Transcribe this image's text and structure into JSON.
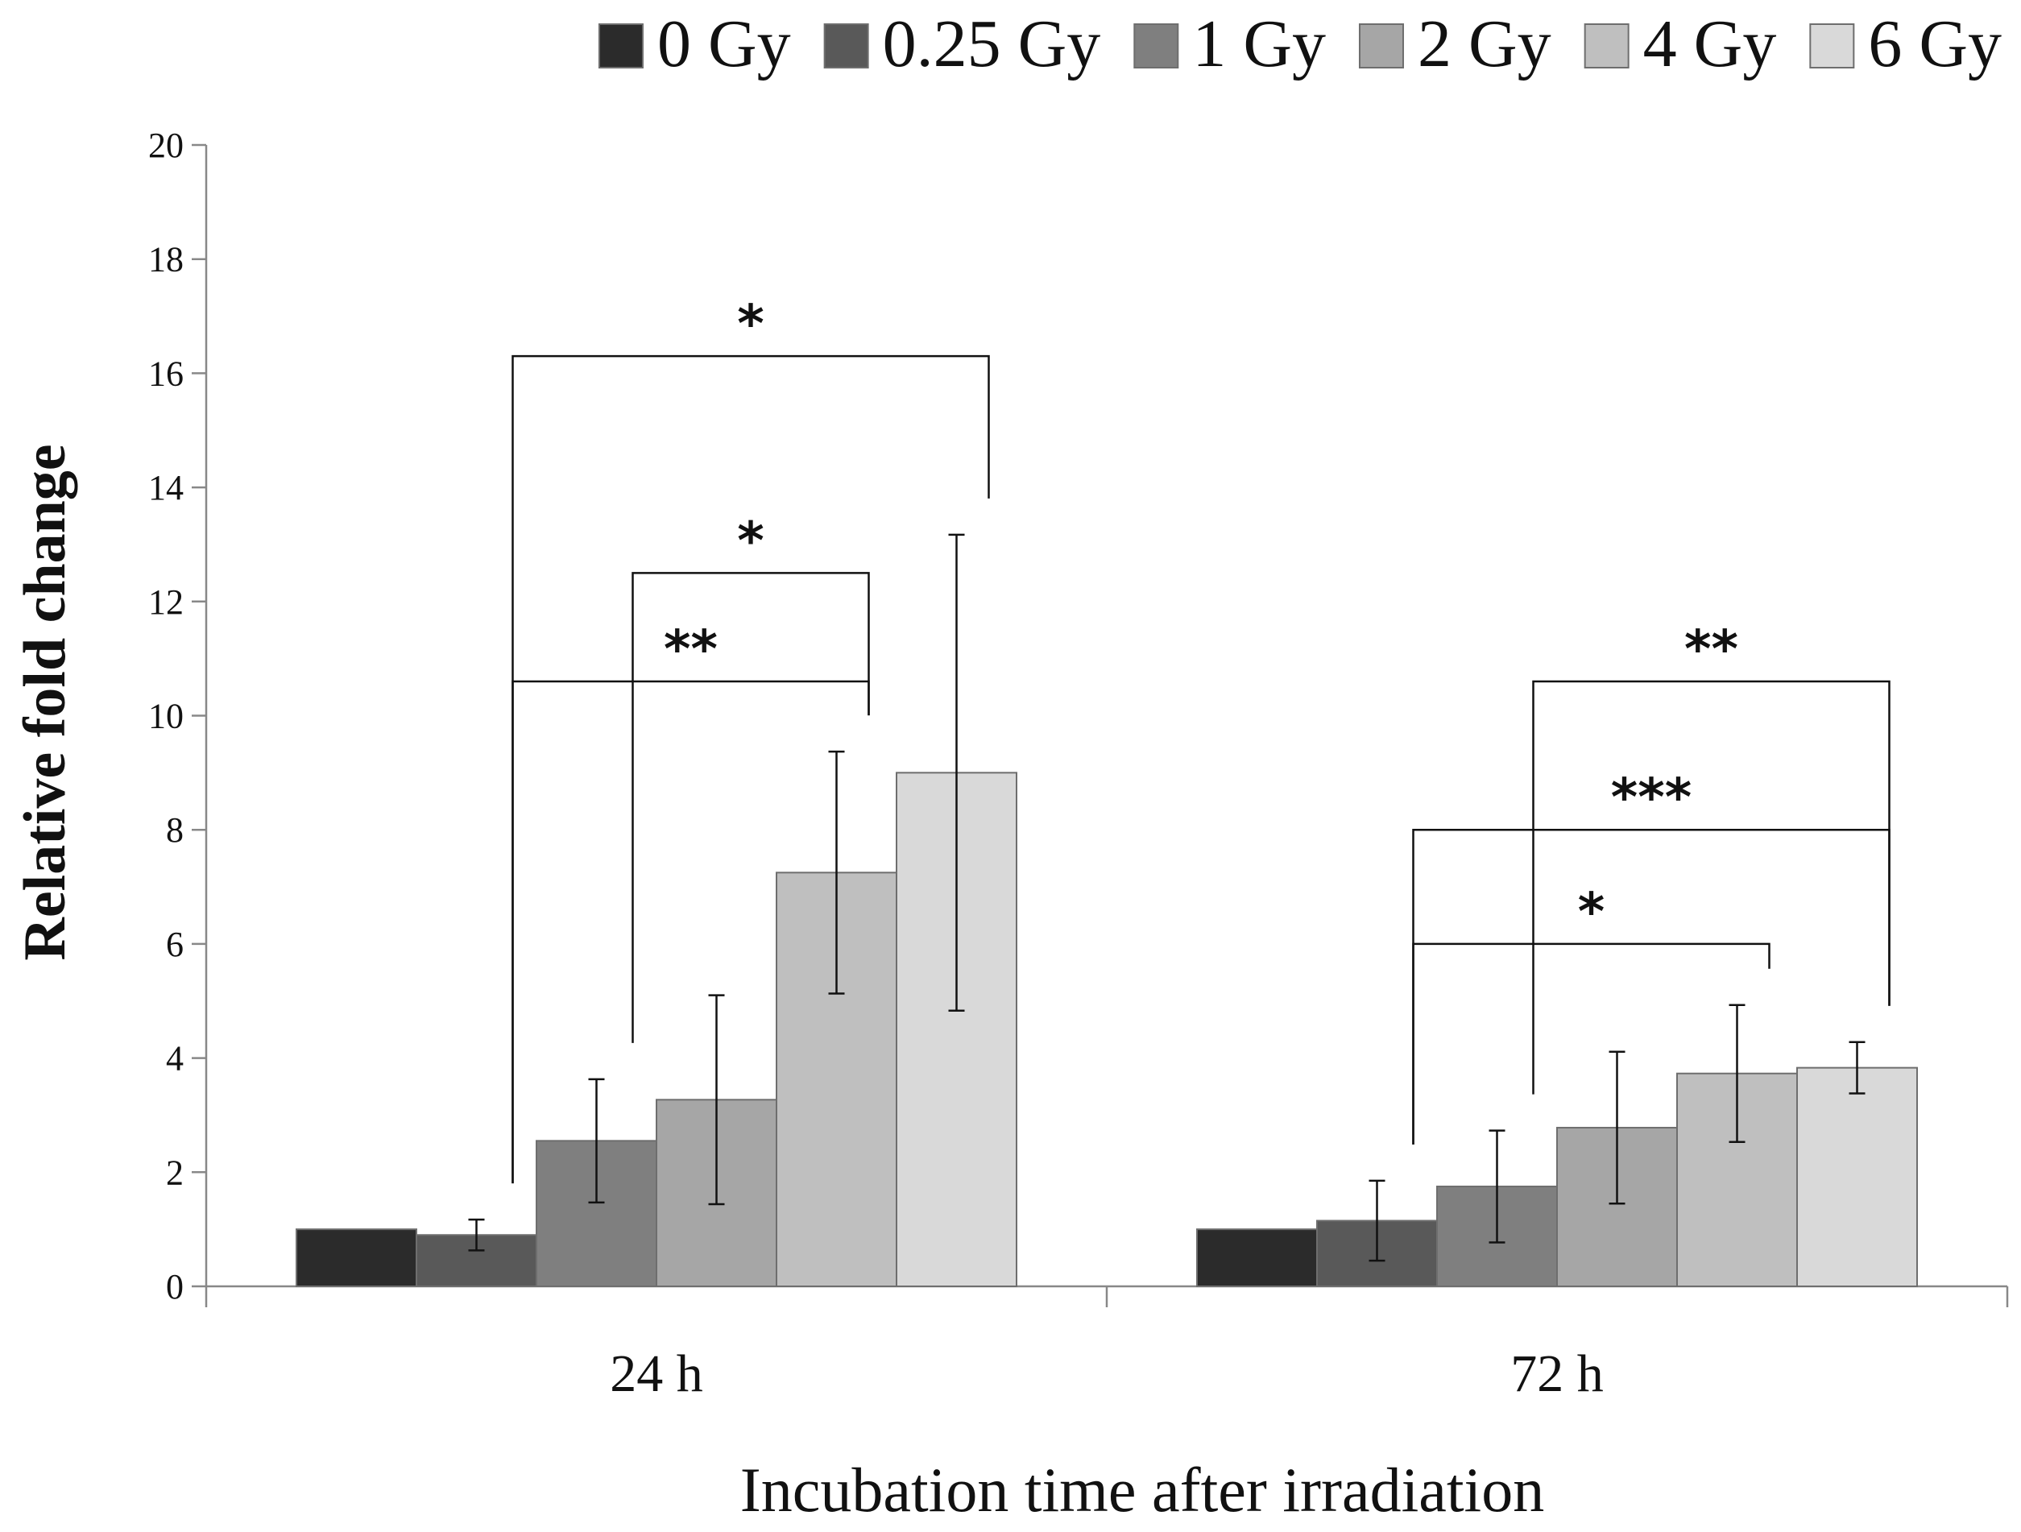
{
  "chart_data": {
    "type": "bar",
    "title": "",
    "xlabel": "Incubation time after irradiation",
    "ylabel": "Relative fold change",
    "ylim": [
      0,
      20
    ],
    "yticks": [
      "0",
      "2",
      "4",
      "6",
      "8",
      "10",
      "12",
      "14",
      "16",
      "18",
      "20"
    ],
    "legend_position": "top",
    "categories": [
      "24 h",
      "72 h"
    ],
    "series": [
      {
        "name": "0 Gy",
        "color": "#2b2b2b",
        "values": [
          1.0,
          1.0
        ],
        "errors": [
          0,
          0
        ]
      },
      {
        "name": "0.25 Gy",
        "color": "#595959",
        "values": [
          0.9,
          1.15
        ],
        "errors": [
          0.27,
          0.7
        ]
      },
      {
        "name": "1 Gy",
        "color": "#7f7f7f",
        "values": [
          2.55,
          1.75
        ],
        "errors": [
          1.08,
          0.98
        ]
      },
      {
        "name": "2 Gy",
        "color": "#a6a6a6",
        "values": [
          3.27,
          2.78
        ],
        "errors": [
          1.83,
          1.33
        ]
      },
      {
        "name": "4 Gy",
        "color": "#bfbfbf",
        "values": [
          7.25,
          3.73
        ],
        "errors": [
          2.12,
          1.2
        ]
      },
      {
        "name": "6 Gy",
        "color": "#d9d9d9",
        "values": [
          9.0,
          3.83
        ],
        "errors": [
          4.17,
          0.45
        ]
      }
    ],
    "significance": [
      {
        "category": 0,
        "from": 1,
        "to": 5,
        "level": 16.3,
        "label": "*"
      },
      {
        "category": 0,
        "from": 2,
        "to": 4,
        "level": 12.5,
        "label": "*"
      },
      {
        "category": 0,
        "from": 1,
        "to": 4,
        "level": 10.6,
        "label": "**"
      },
      {
        "category": 1,
        "from": 2,
        "to": 5,
        "level": 10.6,
        "label": "**"
      },
      {
        "category": 1,
        "from": 1,
        "to": 5,
        "level": 8.0,
        "label": "***"
      },
      {
        "category": 1,
        "from": 1,
        "to": 4,
        "level": 6.0,
        "label": "*"
      }
    ]
  }
}
